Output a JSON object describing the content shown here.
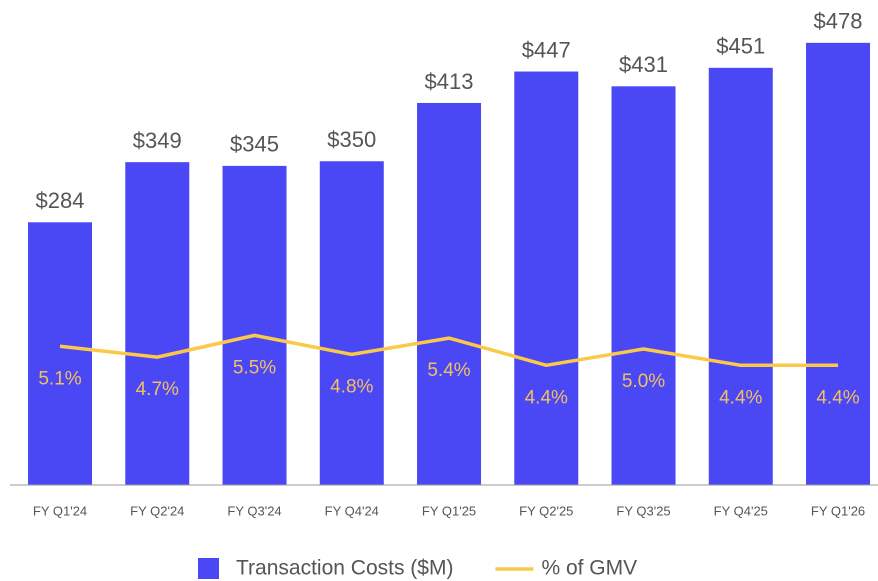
{
  "chart_data": {
    "type": "bar",
    "categories": [
      "FY Q1'24",
      "FY Q2'24",
      "FY Q3'24",
      "FY Q4'24",
      "FY Q1'25",
      "FY Q2'25",
      "FY Q3'25",
      "FY Q4'25",
      "FY Q1'26"
    ],
    "series": [
      {
        "name": "Transaction Costs ($M)",
        "type": "bar",
        "color": "#4a47f5",
        "values": [
          284,
          349,
          345,
          350,
          413,
          447,
          431,
          451,
          478
        ],
        "value_labels": [
          "$284",
          "$349",
          "$345",
          "$350",
          "$413",
          "$447",
          "$431",
          "$451",
          "$478"
        ]
      },
      {
        "name": "% of GMV",
        "type": "line",
        "axis": "y2",
        "color": "#fcc84a",
        "values": [
          5.1,
          4.7,
          5.5,
          4.8,
          5.4,
          4.4,
          5.0,
          4.4,
          4.4
        ],
        "value_labels": [
          "5.1%",
          "4.7%",
          "5.5%",
          "4.8%",
          "5.4%",
          "4.4%",
          "5.0%",
          "4.4%",
          "4.4%"
        ]
      }
    ],
    "ylim": [
      0,
      500
    ],
    "y2lim": [
      0,
      17
    ],
    "legend": "bottom"
  }
}
